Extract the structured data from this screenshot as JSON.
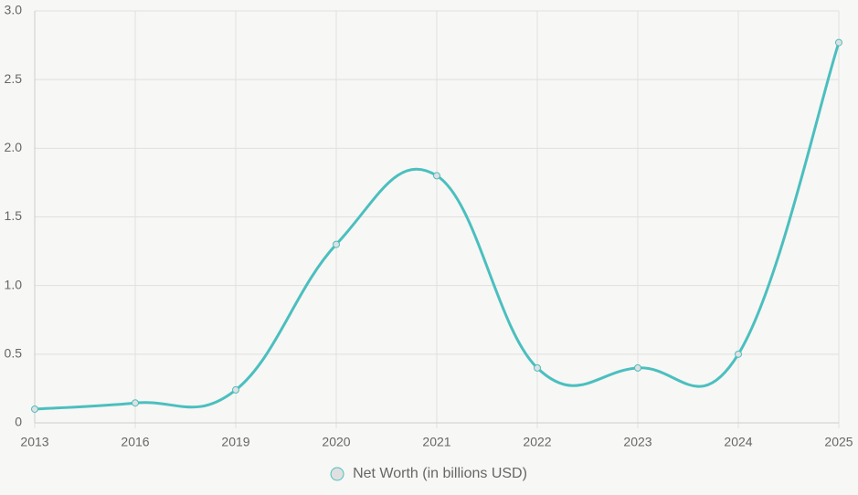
{
  "chart_data": {
    "type": "line",
    "categories": [
      "2013",
      "2016",
      "2019",
      "2020",
      "2021",
      "2022",
      "2023",
      "2024",
      "2025"
    ],
    "series": [
      {
        "name": "Net Worth (in billions USD)",
        "color": "#4bbfbf",
        "values": [
          0.1,
          0.145,
          0.24,
          1.3,
          1.8,
          0.4,
          0.4,
          0.5,
          2.77
        ]
      }
    ],
    "ylim": [
      0,
      3
    ],
    "yticks": [
      0,
      0.5,
      {
        "value": 1,
        "label": "1.0"
      },
      1.5,
      {
        "value": 2,
        "label": "2.0"
      },
      2.5,
      {
        "value": 3,
        "label": "3.0"
      }
    ],
    "grid": true,
    "legend": "bottom"
  }
}
